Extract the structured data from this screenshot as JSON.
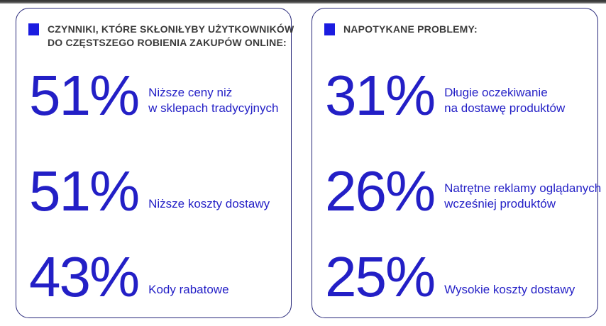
{
  "colors": {
    "accent_blue": "#231fc6",
    "bullet_blue": "#1b1ce0",
    "header_text": "#3b3b3b",
    "panel_border": "#28287a",
    "background": "#ffffff"
  },
  "panels": [
    {
      "id": "factors",
      "title_lines": [
        "CZYNNIKI, KTÓRE SKŁONIŁYBY UŻYTKOWNIKÓW",
        "DO CZĘSTSZEGO ROBIENIA ZAKUPÓW ONLINE:"
      ],
      "stats": [
        {
          "value": "51%",
          "label_lines": [
            "Niższe ceny niż",
            "w sklepach tradycyjnych"
          ]
        },
        {
          "value": "51%",
          "label_lines": [
            "Niższe koszty dostawy"
          ]
        },
        {
          "value": "43%",
          "label_lines": [
            "Kody rabatowe"
          ]
        }
      ]
    },
    {
      "id": "problems",
      "title_lines": [
        "NAPOTYKANE PROBLEMY:"
      ],
      "stats": [
        {
          "value": "31%",
          "label_lines": [
            "Długie oczekiwanie",
            "na dostawę produktów"
          ]
        },
        {
          "value": "26%",
          "label_lines": [
            "Natrętne reklamy oglądanych",
            "wcześniej produktów"
          ]
        },
        {
          "value": "25%",
          "label_lines": [
            "Wysokie koszty dostawy"
          ]
        }
      ]
    }
  ],
  "chart_data": [
    {
      "type": "table",
      "title": "CZYNNIKI, KTÓRE SKŁONIŁYBY UŻYTKOWNIKÓW DO CZĘSTSZEGO ROBIENIA ZAKUPÓW ONLINE:",
      "categories": [
        "Niższe ceny niż w sklepach tradycyjnych",
        "Niższe koszty dostawy",
        "Kody rabatowe"
      ],
      "values": [
        51,
        51,
        43
      ],
      "unit": "%"
    },
    {
      "type": "table",
      "title": "NAPOTYKANE PROBLEMY:",
      "categories": [
        "Długie oczekiwanie na dostawę produktów",
        "Natrętne reklamy oglądanych wcześniej produktów",
        "Wysokie koszty dostawy"
      ],
      "values": [
        31,
        26,
        25
      ],
      "unit": "%"
    }
  ]
}
